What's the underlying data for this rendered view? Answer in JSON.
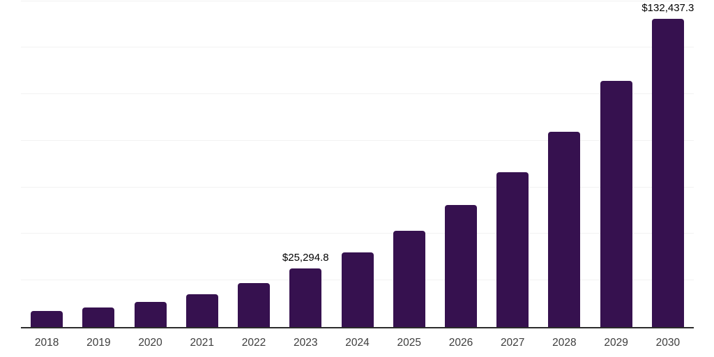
{
  "chart_data": {
    "type": "bar",
    "title": "",
    "xlabel": "",
    "ylabel": "",
    "categories": [
      "2018",
      "2019",
      "2020",
      "2021",
      "2022",
      "2023",
      "2024",
      "2025",
      "2026",
      "2027",
      "2028",
      "2029",
      "2030"
    ],
    "values": [
      6900,
      8400,
      10700,
      14100,
      19000,
      25294.8,
      32000,
      41200,
      52400,
      66600,
      83900,
      105800,
      132437.3
    ],
    "point_labels": {
      "2023": "$25,294.8",
      "2030": "$132,437.3"
    },
    "ylim": [
      0,
      140500
    ],
    "gridline_step": 20000,
    "grid": "horizontal",
    "legend": "none",
    "colors": {
      "bar": "#36114F",
      "axis_line": "#2b2b2b",
      "gridline": "#f2f2f2",
      "tick_label": "#3d3d3d",
      "data_label": "#000000",
      "background": "#ffffff"
    }
  }
}
